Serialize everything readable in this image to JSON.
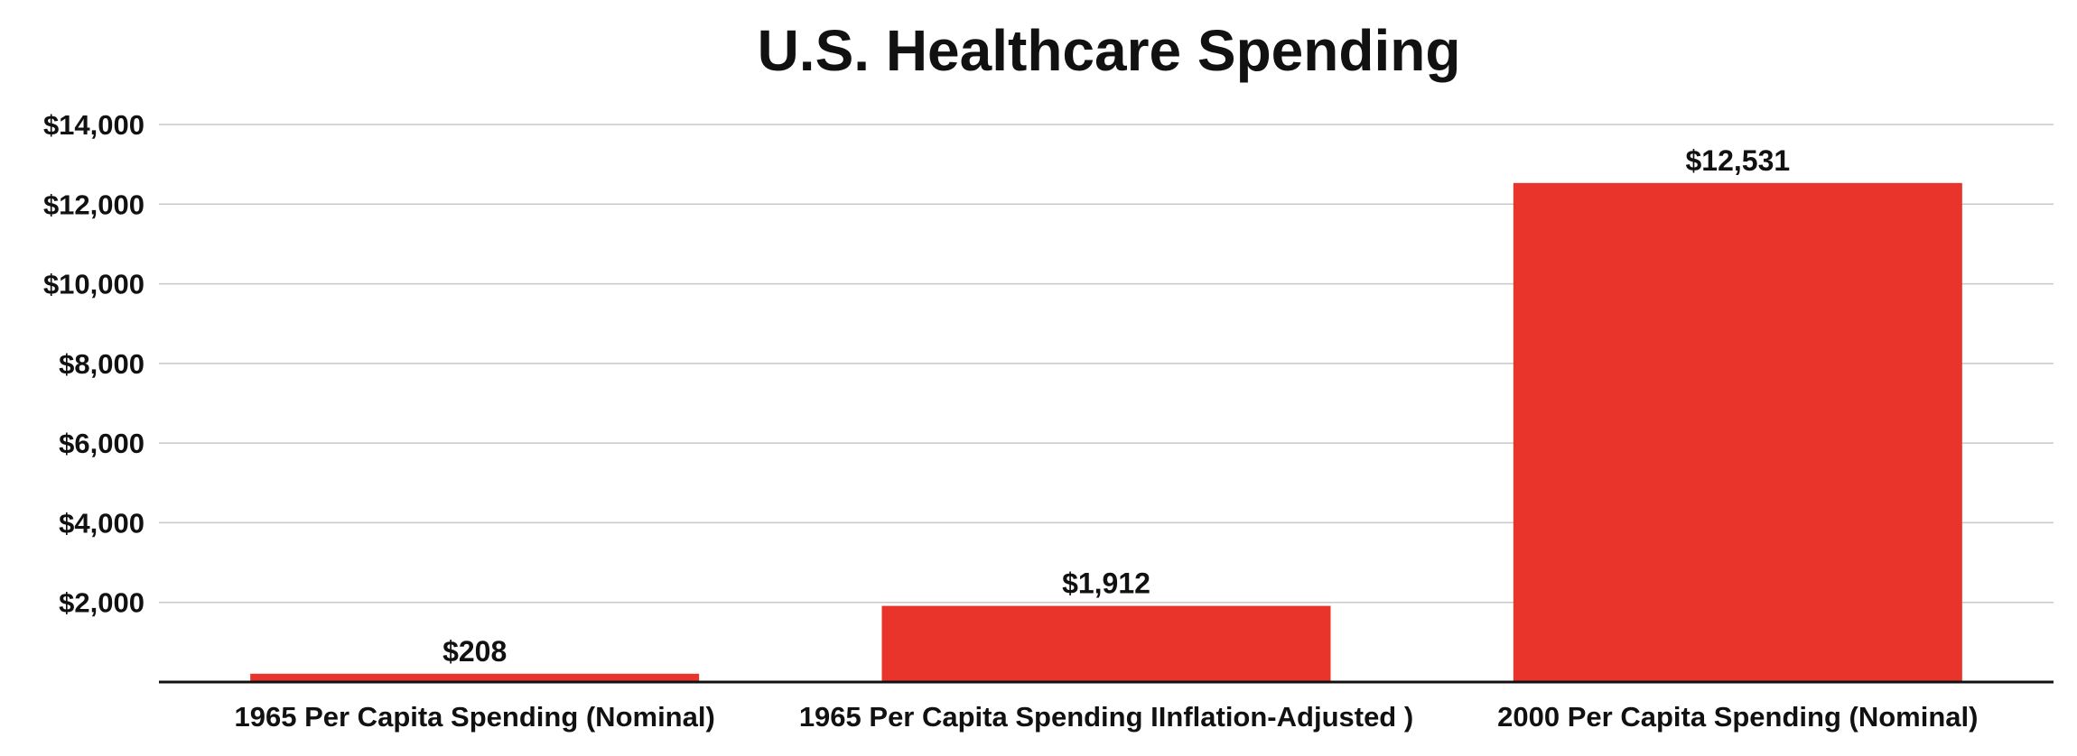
{
  "chart_data": {
    "type": "bar",
    "title": "U.S. Healthcare Spending",
    "xlabel": "",
    "ylabel": "",
    "categories": [
      "1965 Per Capita Spending (Nominal)",
      "1965 Per Capita Spending IInflation-Adjusted )",
      "2000 Per Capita Spending (Nominal)"
    ],
    "values": [
      208,
      1912,
      12531
    ],
    "data_labels": [
      "$208",
      "$1,912",
      "$12,531"
    ],
    "ylim": [
      0,
      14000
    ],
    "yticks": [
      2000,
      4000,
      6000,
      8000,
      10000,
      12000,
      14000
    ],
    "ytick_labels": [
      "$2,000",
      "$4,000",
      "$6,000",
      "$8,000",
      "$10,000",
      "$12,000",
      "$14,000"
    ],
    "grid": true,
    "legend": "none",
    "bar_color": "#e8342a"
  }
}
